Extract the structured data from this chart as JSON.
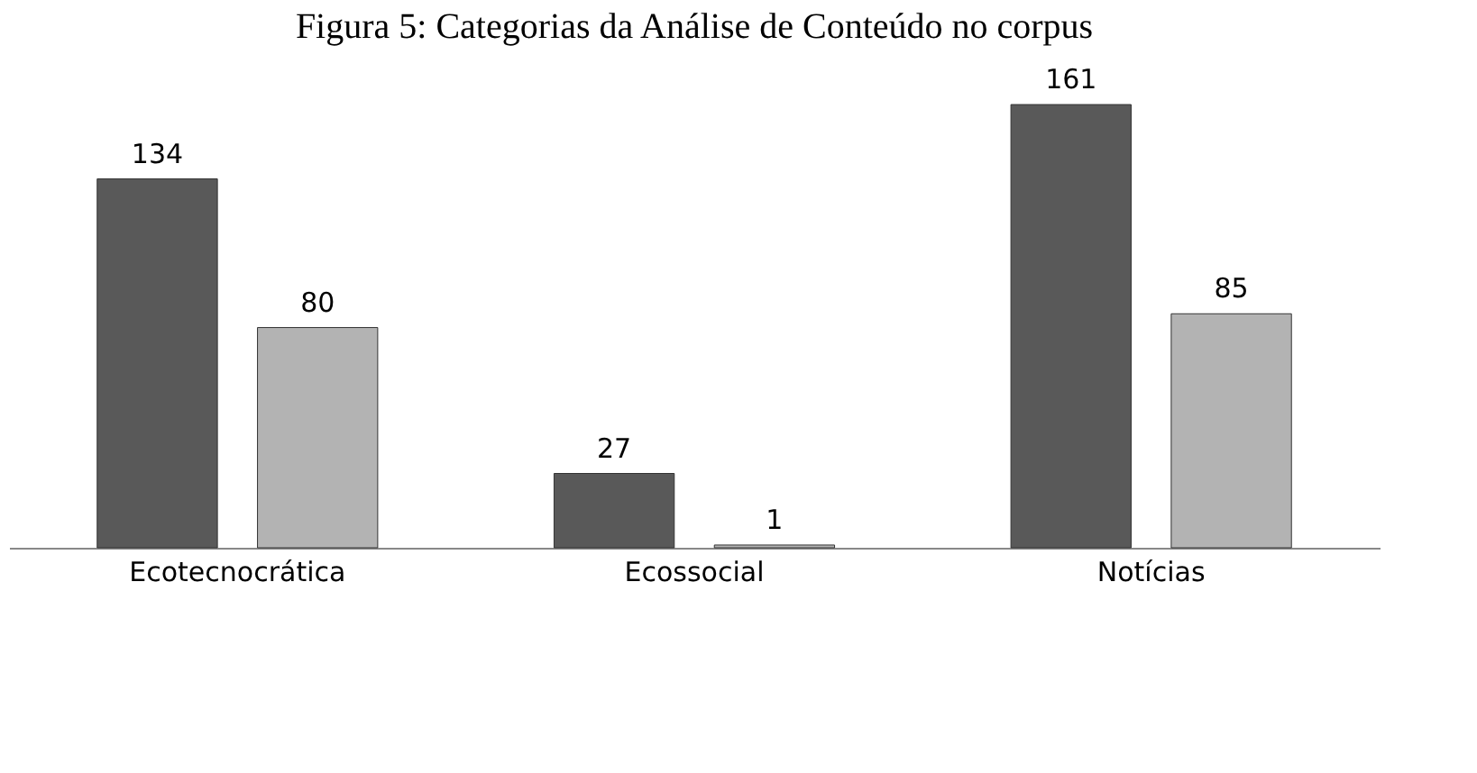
{
  "chart_data": {
    "type": "bar",
    "title": "Figura 5: Categorias da Análise de Conteúdo no corpus",
    "categories": [
      "Ecotecnocrática",
      "Ecossocial",
      "Notícias"
    ],
    "series": [
      {
        "color": "#595959",
        "values": [
          134,
          27,
          161
        ]
      },
      {
        "color": "#b3b3b3",
        "values": [
          80,
          1,
          85
        ]
      }
    ],
    "data_labels": true,
    "grid": false,
    "legend": false
  }
}
